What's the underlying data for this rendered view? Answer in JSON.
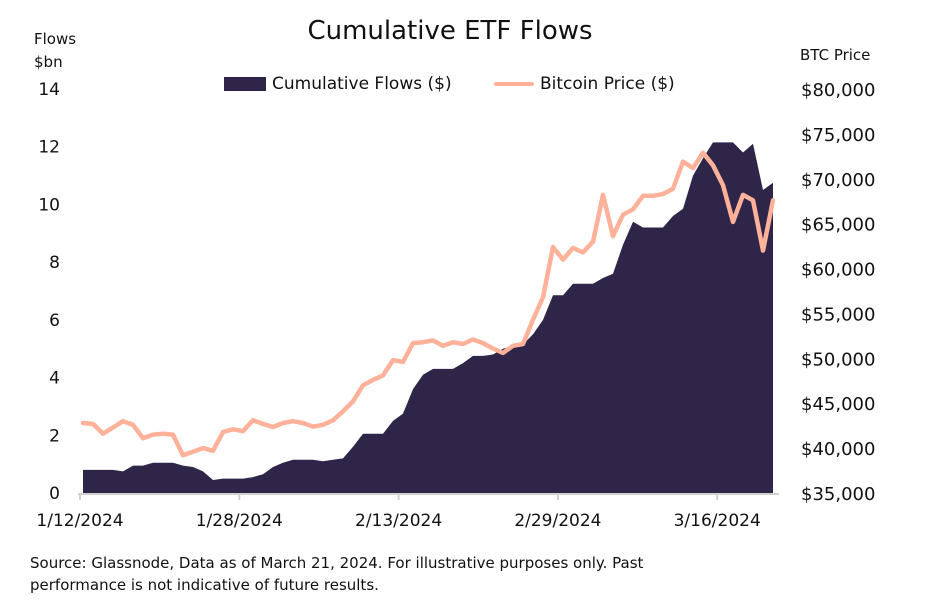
{
  "chart_data": {
    "type": "area+line",
    "title": "Cumulative ETF Flows",
    "ylabel_left": [
      "Flows",
      "$bn"
    ],
    "ylabel_right": "BTC Price",
    "ylim_left": [
      0,
      14
    ],
    "ylim_right": [
      35000,
      80000
    ],
    "yticks_left": [
      "0",
      "2",
      "4",
      "6",
      "8",
      "10",
      "12",
      "14"
    ],
    "yticks_right": [
      "$35,000",
      "$40,000",
      "$45,000",
      "$50,000",
      "$55,000",
      "$60,000",
      "$65,000",
      "$70,000",
      "$75,000",
      "$80,000"
    ],
    "xticks": [
      "1/12/2024",
      "1/28/2024",
      "2/13/2024",
      "2/29/2024",
      "3/16/2024"
    ],
    "grid": false,
    "legend_placement": "top",
    "x": [
      "1/12",
      "1/13",
      "1/14",
      "1/15",
      "1/16",
      "1/17",
      "1/18",
      "1/19",
      "1/20",
      "1/21",
      "1/22",
      "1/23",
      "1/24",
      "1/25",
      "1/26",
      "1/27",
      "1/28",
      "1/29",
      "1/30",
      "1/31",
      "2/1",
      "2/2",
      "2/3",
      "2/4",
      "2/5",
      "2/6",
      "2/7",
      "2/8",
      "2/9",
      "2/10",
      "2/11",
      "2/12",
      "2/13",
      "2/14",
      "2/15",
      "2/16",
      "2/17",
      "2/18",
      "2/19",
      "2/20",
      "2/21",
      "2/22",
      "2/23",
      "2/24",
      "2/25",
      "2/26",
      "2/27",
      "2/28",
      "2/29",
      "3/1",
      "3/2",
      "3/3",
      "3/4",
      "3/5",
      "3/6",
      "3/7",
      "3/8",
      "3/9",
      "3/10",
      "3/11",
      "3/12",
      "3/13",
      "3/14",
      "3/15",
      "3/16",
      "3/17",
      "3/18",
      "3/19",
      "3/20",
      "3/21"
    ],
    "series": [
      {
        "name": "Cumulative Flows ($)",
        "kind": "area",
        "axis": "left",
        "color": "#2E2549",
        "values": [
          0.8,
          0.8,
          0.8,
          0.8,
          0.75,
          0.95,
          0.95,
          1.05,
          1.05,
          1.05,
          0.95,
          0.9,
          0.75,
          0.45,
          0.5,
          0.5,
          0.5,
          0.55,
          0.65,
          0.9,
          1.05,
          1.15,
          1.15,
          1.15,
          1.1,
          1.15,
          1.2,
          1.6,
          2.05,
          2.05,
          2.05,
          2.5,
          2.75,
          3.6,
          4.1,
          4.3,
          4.3,
          4.3,
          4.5,
          4.75,
          4.75,
          4.8,
          5.0,
          5.1,
          5.15,
          5.5,
          6.0,
          6.85,
          6.85,
          7.25,
          7.25,
          7.25,
          7.45,
          7.6,
          8.6,
          9.4,
          9.2,
          9.2,
          9.2,
          9.6,
          9.85,
          11.0,
          11.6,
          12.15,
          12.15,
          12.15,
          11.8,
          12.1,
          10.5,
          10.75
        ]
      },
      {
        "name": "Bitcoin Price ($)",
        "kind": "line",
        "axis": "right",
        "color": "#FFB199",
        "values": [
          42800,
          42700,
          41600,
          42300,
          43000,
          42600,
          41100,
          41500,
          41600,
          41500,
          39200,
          39600,
          40000,
          39700,
          41800,
          42100,
          41900,
          43100,
          42700,
          42350,
          42800,
          43000,
          42800,
          42400,
          42600,
          43100,
          44100,
          45200,
          47000,
          47600,
          48100,
          49800,
          49600,
          51700,
          51800,
          52000,
          51400,
          51800,
          51600,
          52100,
          51700,
          51100,
          50600,
          51400,
          51600,
          54300,
          56800,
          62400,
          61000,
          62300,
          61800,
          63000,
          68200,
          63600,
          66000,
          66600,
          68100,
          68100,
          68300,
          68900,
          71900,
          71200,
          72900,
          71500,
          69300,
          65200,
          68200,
          67600,
          62000,
          67600
        ]
      }
    ]
  },
  "source": "Source: Glassnode, Data as of March 21, 2024. For illustrative purposes only. Past",
  "source_line2": "performance is not indicative of future results."
}
